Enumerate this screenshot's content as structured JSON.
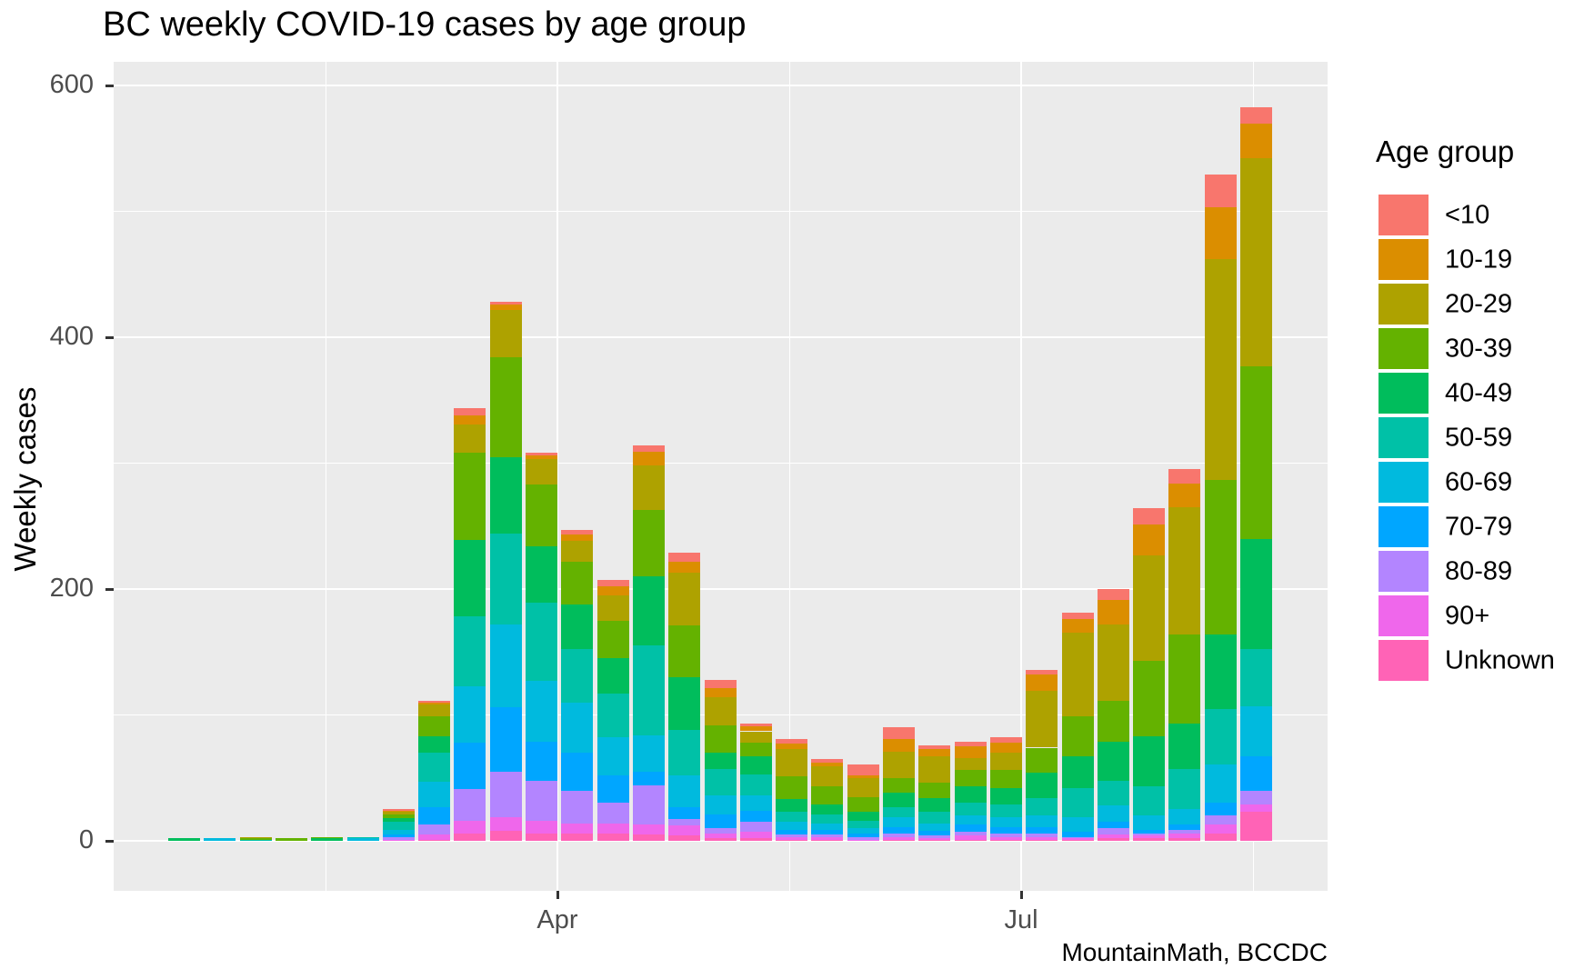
{
  "title": "BC weekly COVID-19 cases by age group",
  "caption": "MountainMath, BCCDC",
  "chart_data": {
    "type": "bar",
    "stacked": true,
    "title": "BC weekly COVID-19 cases by age group",
    "xlabel": "",
    "ylabel": "Weekly cases",
    "legend_title": "Age group",
    "legend_position": "right",
    "grid": true,
    "panel_background": "#EBEBEB",
    "ylim": [
      0,
      658
    ],
    "y_ticks": [
      0,
      200,
      400,
      600
    ],
    "y_minor_ticks": [
      100,
      300,
      500
    ],
    "x_tick_labels": [
      "Apr",
      "Jul"
    ],
    "age_groups": [
      {
        "name": "<10",
        "color": "#F8766D"
      },
      {
        "name": "10-19",
        "color": "#DB8E00"
      },
      {
        "name": "20-29",
        "color": "#AEA200"
      },
      {
        "name": "30-39",
        "color": "#64B200"
      },
      {
        "name": "40-49",
        "color": "#00BD5C"
      },
      {
        "name": "50-59",
        "color": "#00C1A7"
      },
      {
        "name": "60-69",
        "color": "#00BADE"
      },
      {
        "name": "70-79",
        "color": "#00A6FF"
      },
      {
        "name": "80-89",
        "color": "#B385FF"
      },
      {
        "name": "90+",
        "color": "#EF67EB"
      },
      {
        "name": "Unknown",
        "color": "#FF63B6"
      }
    ],
    "series_note": "weeks[i].values aligned to age_groups order; bars stacked with Unknown at bottom and <10 on top",
    "weeks": [
      {
        "values": [
          0,
          0,
          0,
          0,
          2,
          0,
          0,
          0,
          0,
          0,
          0
        ],
        "total": 2
      },
      {
        "values": [
          0,
          0,
          0,
          0,
          0,
          0,
          2,
          0,
          0,
          0,
          0
        ],
        "total": 2
      },
      {
        "values": [
          0,
          0,
          1,
          1,
          0,
          1,
          0,
          0,
          0,
          0,
          0
        ],
        "total": 3
      },
      {
        "values": [
          0,
          0,
          0,
          2,
          0,
          0,
          0,
          0,
          0,
          0,
          0
        ],
        "total": 2
      },
      {
        "values": [
          0,
          0,
          0,
          1,
          2,
          0,
          0,
          0,
          0,
          0,
          0
        ],
        "total": 3
      },
      {
        "values": [
          0,
          0,
          0,
          0,
          0,
          1,
          2,
          0,
          0,
          0,
          0
        ],
        "total": 3
      },
      {
        "values": [
          1,
          1,
          2,
          3,
          3,
          6,
          4,
          2,
          2,
          1,
          0
        ],
        "total": 25
      },
      {
        "values": [
          1,
          2,
          9,
          16,
          13,
          23,
          20,
          14,
          8,
          4,
          1
        ],
        "total": 111
      },
      {
        "values": [
          6,
          7,
          23,
          69,
          61,
          55,
          45,
          37,
          25,
          10,
          6
        ],
        "total": 344
      },
      {
        "values": [
          2,
          4,
          38,
          79,
          61,
          72,
          66,
          51,
          36,
          11,
          8
        ],
        "total": 428
      },
      {
        "values": [
          2,
          3,
          20,
          49,
          45,
          62,
          48,
          31,
          32,
          10,
          6
        ],
        "total": 308
      },
      {
        "values": [
          4,
          5,
          16,
          34,
          36,
          42,
          40,
          30,
          26,
          8,
          6
        ],
        "total": 247
      },
      {
        "values": [
          5,
          7,
          20,
          30,
          28,
          35,
          30,
          22,
          16,
          8,
          6
        ],
        "total": 207
      },
      {
        "values": [
          5,
          11,
          35,
          53,
          55,
          71,
          29,
          11,
          31,
          8,
          5
        ],
        "total": 314
      },
      {
        "values": [
          7,
          9,
          42,
          41,
          42,
          36,
          25,
          10,
          5,
          8,
          4
        ],
        "total": 229
      },
      {
        "values": [
          7,
          7,
          22,
          22,
          13,
          21,
          15,
          11,
          4,
          4,
          2
        ],
        "total": 128
      },
      {
        "values": [
          2,
          4,
          9,
          11,
          14,
          17,
          12,
          9,
          8,
          5,
          2
        ],
        "total": 93
      },
      {
        "values": [
          4,
          4,
          22,
          18,
          10,
          8,
          6,
          4,
          2,
          2,
          1
        ],
        "total": 81
      },
      {
        "values": [
          3,
          3,
          16,
          14,
          8,
          7,
          5,
          4,
          2,
          2,
          1
        ],
        "total": 65
      },
      {
        "values": [
          9,
          2,
          15,
          12,
          7,
          6,
          4,
          3,
          2,
          1,
          0
        ],
        "total": 61
      },
      {
        "values": [
          9,
          10,
          21,
          12,
          11,
          8,
          8,
          5,
          3,
          2,
          1
        ],
        "total": 90
      },
      {
        "values": [
          3,
          6,
          21,
          12,
          11,
          9,
          6,
          4,
          2,
          1,
          1
        ],
        "total": 76
      },
      {
        "values": [
          4,
          9,
          10,
          13,
          13,
          10,
          7,
          6,
          3,
          3,
          1
        ],
        "total": 79
      },
      {
        "values": [
          4,
          8,
          14,
          14,
          13,
          10,
          8,
          5,
          3,
          2,
          1
        ],
        "total": 82
      },
      {
        "values": [
          4,
          13,
          45,
          20,
          20,
          14,
          9,
          5,
          3,
          2,
          1
        ],
        "total": 136
      },
      {
        "values": [
          5,
          11,
          66,
          32,
          25,
          23,
          12,
          4,
          1,
          1,
          1
        ],
        "total": 181
      },
      {
        "values": [
          9,
          19,
          61,
          32,
          31,
          20,
          13,
          5,
          5,
          3,
          2
        ],
        "total": 200
      },
      {
        "values": [
          13,
          24,
          84,
          60,
          40,
          23,
          11,
          3,
          2,
          2,
          2
        ],
        "total": 264
      },
      {
        "values": [
          11,
          19,
          101,
          71,
          36,
          32,
          12,
          4,
          3,
          4,
          2
        ],
        "total": 295
      },
      {
        "values": [
          26,
          41,
          175,
          123,
          59,
          44,
          31,
          10,
          7,
          7,
          6
        ],
        "total": 529
      },
      {
        "values": [
          13,
          28,
          165,
          137,
          88,
          45,
          40,
          27,
          11,
          6,
          23
        ],
        "total": 583
      }
    ]
  }
}
